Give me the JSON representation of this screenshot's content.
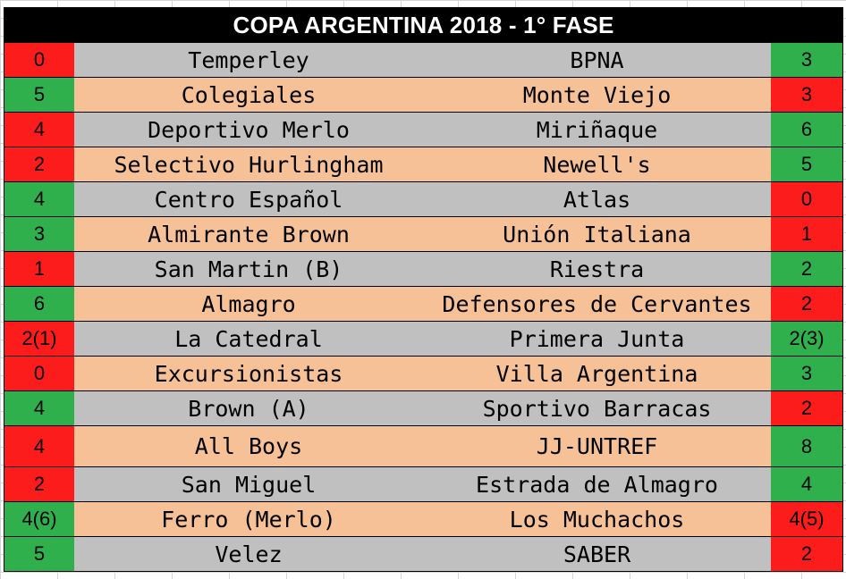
{
  "title": "COPA ARGENTINA 2018 - 1° FASE",
  "colors": {
    "win": "#2fb04c",
    "loss": "#fc1c1c",
    "row_gray": "#c0c0c0",
    "row_peach": "#f7c197",
    "header_bg": "#000000"
  },
  "matches": [
    {
      "home_score": "0",
      "home": "Temperley",
      "away": "BPNA",
      "away_score": "3",
      "home_color": "r",
      "away_color": "g",
      "row_color": "gray"
    },
    {
      "home_score": "5",
      "home": "Colegiales",
      "away": "Monte Viejo",
      "away_score": "3",
      "home_color": "g",
      "away_color": "r",
      "row_color": "peach"
    },
    {
      "home_score": "4",
      "home": "Deportivo Merlo",
      "away": "Miriñaque",
      "away_score": "6",
      "home_color": "r",
      "away_color": "g",
      "row_color": "gray"
    },
    {
      "home_score": "2",
      "home": "Selectivo Hurlingham",
      "away": "Newell's",
      "away_score": "5",
      "home_color": "r",
      "away_color": "g",
      "row_color": "peach"
    },
    {
      "home_score": "4",
      "home": "Centro Español",
      "away": "Atlas",
      "away_score": "0",
      "home_color": "g",
      "away_color": "r",
      "row_color": "gray"
    },
    {
      "home_score": "3",
      "home": "Almirante Brown",
      "away": "Unión Italiana",
      "away_score": "1",
      "home_color": "g",
      "away_color": "r",
      "row_color": "peach"
    },
    {
      "home_score": "1",
      "home": "San Martin (B)",
      "away": "Riestra",
      "away_score": "2",
      "home_color": "r",
      "away_color": "g",
      "row_color": "gray"
    },
    {
      "home_score": "6",
      "home": "Almagro",
      "away": "Defensores de Cervantes",
      "away_score": "2",
      "home_color": "g",
      "away_color": "r",
      "row_color": "peach"
    },
    {
      "home_score": "2(1)",
      "home": "La Catedral",
      "away": "Primera Junta",
      "away_score": "2(3)",
      "home_color": "r",
      "away_color": "g",
      "row_color": "gray"
    },
    {
      "home_score": "0",
      "home": "Excursionistas",
      "away": "Villa Argentina",
      "away_score": "3",
      "home_color": "r",
      "away_color": "g",
      "row_color": "peach"
    },
    {
      "home_score": "4",
      "home": "Brown (A)",
      "away": "Sportivo Barracas",
      "away_score": "2",
      "home_color": "g",
      "away_color": "r",
      "row_color": "gray"
    },
    {
      "home_score": "4",
      "home": "All Boys",
      "away": "JJ-UNTREF",
      "away_score": "8",
      "home_color": "r",
      "away_color": "g",
      "row_color": "peach",
      "tall": true
    },
    {
      "home_score": "2",
      "home": "San Miguel",
      "away": "Estrada de Almagro",
      "away_score": "4",
      "home_color": "r",
      "away_color": "g",
      "row_color": "gray"
    },
    {
      "home_score": "4(6)",
      "home": "Ferro (Merlo)",
      "away": "Los Muchachos",
      "away_score": "4(5)",
      "home_color": "g",
      "away_color": "r",
      "row_color": "peach"
    },
    {
      "home_score": "5",
      "home": "Velez",
      "away": "SABER",
      "away_score": "2",
      "home_color": "g",
      "away_color": "r",
      "row_color": "gray"
    }
  ]
}
